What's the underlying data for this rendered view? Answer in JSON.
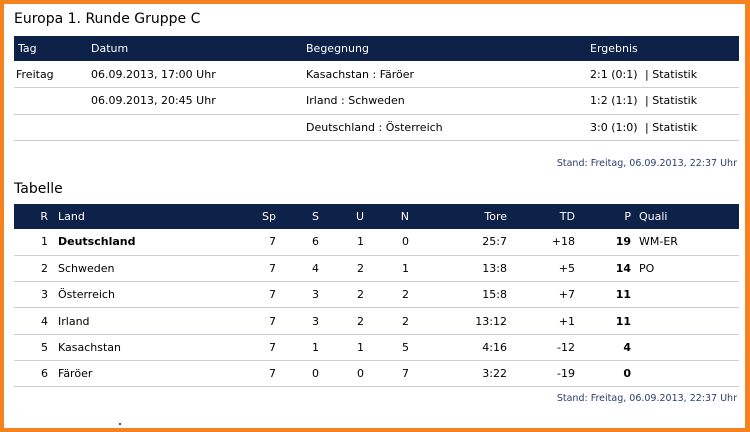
{
  "title": "Europa 1. Runde Gruppe C",
  "matches": {
    "headers": {
      "tag": "Tag",
      "datum": "Datum",
      "begegnung": "Begegnung",
      "ergebnis": "Ergebnis"
    },
    "rows": [
      {
        "tag": "Freitag",
        "datum": "06.09.2013, 17:00 Uhr",
        "begegnung": "Kasachstan : Färöer",
        "ergebnis": "2:1 (0:1)",
        "link": "Statistik"
      },
      {
        "tag": "",
        "datum": "06.09.2013, 20:45 Uhr",
        "begegnung": "Irland : Schweden",
        "ergebnis": "1:2 (1:1)",
        "link": "Statistik"
      },
      {
        "tag": "",
        "datum": "",
        "begegnung": "Deutschland : Österreich",
        "ergebnis": "3:0 (1:0)",
        "link": "Statistik"
      }
    ],
    "stand": "Stand: Freitag, 06.09.2013, 22:37 Uhr"
  },
  "table_title": "Tabelle",
  "standings": {
    "headers": {
      "r": "R",
      "land": "Land",
      "sp": "Sp",
      "s": "S",
      "u": "U",
      "n": "N",
      "tore": "Tore",
      "td": "TD",
      "p": "P",
      "quali": "Quali"
    },
    "rows": [
      {
        "r": "1",
        "land": "Deutschland",
        "sp": "7",
        "s": "6",
        "u": "1",
        "n": "0",
        "tore": "25:7",
        "td": "+18",
        "p": "19",
        "quali": "WM-ER"
      },
      {
        "r": "2",
        "land": "Schweden",
        "sp": "7",
        "s": "4",
        "u": "2",
        "n": "1",
        "tore": "13:8",
        "td": "+5",
        "p": "14",
        "quali": "PO"
      },
      {
        "r": "3",
        "land": "Österreich",
        "sp": "7",
        "s": "3",
        "u": "2",
        "n": "2",
        "tore": "15:8",
        "td": "+7",
        "p": "11",
        "quali": ""
      },
      {
        "r": "4",
        "land": "Irland",
        "sp": "7",
        "s": "3",
        "u": "2",
        "n": "2",
        "tore": "13:12",
        "td": "+1",
        "p": "11",
        "quali": ""
      },
      {
        "r": "5",
        "land": "Kasachstan",
        "sp": "7",
        "s": "1",
        "u": "1",
        "n": "5",
        "tore": "4:16",
        "td": "-12",
        "p": "4",
        "quali": ""
      },
      {
        "r": "6",
        "land": "Färöer",
        "sp": "7",
        "s": "0",
        "u": "0",
        "n": "7",
        "tore": "3:22",
        "td": "-19",
        "p": "0",
        "quali": ""
      }
    ],
    "stand": "Stand: Freitag, 06.09.2013, 22:37 Uhr"
  },
  "colors": {
    "border": "#f5821f",
    "header_bg": "#0d2149"
  }
}
